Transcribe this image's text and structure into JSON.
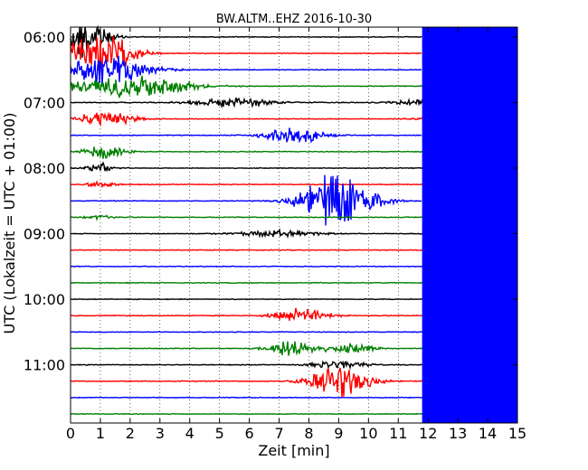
{
  "chart_data": {
    "type": "line",
    "title": "BW.ALTM..EHZ 2016-10-30",
    "xlabel": "Zeit  [min]",
    "ylabel": "UTC (Lokalzeit = UTC + 01:00)",
    "xlim": [
      0,
      15
    ],
    "x_ticks": [
      "0",
      "1",
      "2",
      "3",
      "4",
      "5",
      "6",
      "7",
      "8",
      "9",
      "10",
      "11",
      "12",
      "13",
      "14",
      "15"
    ],
    "y_ticks": [
      "06:00",
      "07:00",
      "08:00",
      "09:00",
      "10:00",
      "11:00"
    ],
    "grid": true,
    "trace_interval_min": 15,
    "trace_color_cycle": [
      "#000000",
      "#ff0000",
      "#0000ff",
      "#008000"
    ],
    "traces": [
      {
        "start": "06:00",
        "end_min": 11.8,
        "events": [
          {
            "center": 0.5,
            "width": 1.6,
            "amp": 3.0
          }
        ]
      },
      {
        "start": "06:15",
        "end_min": 11.8,
        "events": [
          {
            "center": 1.0,
            "width": 2.5,
            "amp": 2.5
          }
        ]
      },
      {
        "start": "06:30",
        "end_min": 11.8,
        "events": [
          {
            "center": 1.2,
            "width": 3.0,
            "amp": 2.0
          }
        ]
      },
      {
        "start": "06:45",
        "end_min": 15,
        "events": [
          {
            "center": 2.0,
            "width": 4.0,
            "amp": 1.6
          }
        ]
      },
      {
        "start": "07:00",
        "end_min": 15,
        "events": [
          {
            "center": 5.5,
            "width": 3.0,
            "amp": 0.6
          },
          {
            "center": 12.5,
            "width": 3.0,
            "amp": 0.6
          }
        ]
      },
      {
        "start": "07:15",
        "end_min": 15,
        "events": [
          {
            "center": 1.2,
            "width": 2.0,
            "amp": 1.0
          },
          {
            "center": 13.0,
            "width": 2.5,
            "amp": 0.5
          }
        ]
      },
      {
        "start": "07:30",
        "end_min": 11.8,
        "events": [
          {
            "center": 7.5,
            "width": 2.2,
            "amp": 1.0
          }
        ]
      },
      {
        "start": "07:45",
        "end_min": 15,
        "events": [
          {
            "center": 1.2,
            "width": 1.5,
            "amp": 1.0
          }
        ]
      },
      {
        "start": "08:00",
        "end_min": 15,
        "events": [
          {
            "center": 1.0,
            "width": 1.0,
            "amp": 0.6
          }
        ]
      },
      {
        "start": "08:15",
        "end_min": 15,
        "events": [
          {
            "center": 1.0,
            "width": 1.0,
            "amp": 0.4
          }
        ]
      },
      {
        "start": "08:30",
        "end_min": 11.8,
        "events": [
          {
            "center": 9.0,
            "width": 2.5,
            "amp": 4.0
          }
        ]
      },
      {
        "start": "08:45",
        "end_min": 15,
        "events": [
          {
            "center": 1.0,
            "width": 1.0,
            "amp": 0.3
          }
        ]
      },
      {
        "start": "09:00",
        "end_min": 15,
        "events": [
          {
            "center": 7.0,
            "width": 3.0,
            "amp": 0.4
          }
        ]
      },
      {
        "start": "09:15",
        "end_min": 15,
        "events": []
      },
      {
        "start": "09:30",
        "end_min": 11.9,
        "events": []
      },
      {
        "start": "09:45",
        "end_min": 15,
        "events": []
      },
      {
        "start": "10:00",
        "end_min": 15,
        "events": []
      },
      {
        "start": "10:15",
        "end_min": 15,
        "events": [
          {
            "center": 7.8,
            "width": 2.0,
            "amp": 0.9
          },
          {
            "center": 13.5,
            "width": 1.5,
            "amp": 0.5
          }
        ]
      },
      {
        "start": "10:30",
        "end_min": 11.9,
        "events": []
      },
      {
        "start": "10:45",
        "end_min": 15,
        "events": [
          {
            "center": 7.5,
            "width": 1.8,
            "amp": 1.2
          },
          {
            "center": 9.5,
            "width": 1.6,
            "amp": 0.6
          }
        ]
      },
      {
        "start": "11:00",
        "end_min": 15,
        "events": [
          {
            "center": 9.0,
            "width": 2.0,
            "amp": 0.5
          }
        ]
      },
      {
        "start": "11:15",
        "end_min": 15,
        "events": [
          {
            "center": 9.0,
            "width": 2.2,
            "amp": 2.0
          }
        ]
      },
      {
        "start": "11:30",
        "end_min": 11.9,
        "events": []
      },
      {
        "start": "11:45",
        "end_min": 15,
        "events": []
      }
    ],
    "saturated_block": {
      "color": "#0000ff",
      "x_range": [
        11.8,
        15
      ]
    }
  }
}
